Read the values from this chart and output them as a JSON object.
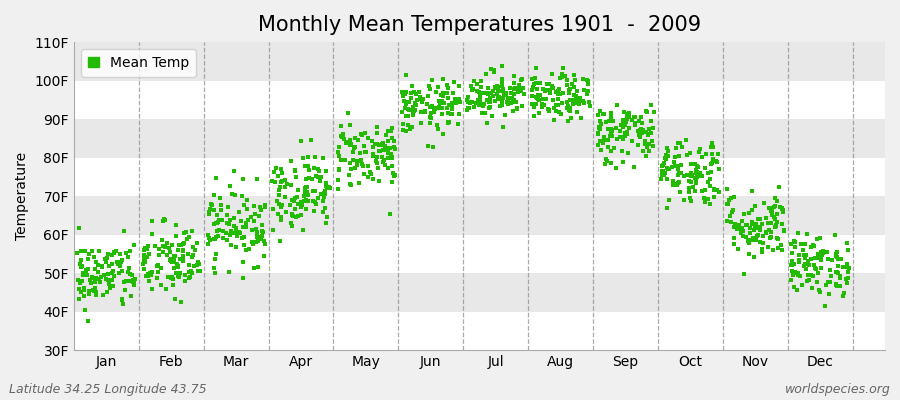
{
  "title": "Monthly Mean Temperatures 1901  -  2009",
  "ylabel": "Temperature",
  "ylim": [
    30,
    110
  ],
  "yticks": [
    30,
    40,
    50,
    60,
    70,
    80,
    90,
    100,
    110
  ],
  "ytick_labels": [
    "30F",
    "40F",
    "50F",
    "60F",
    "70F",
    "80F",
    "90F",
    "100F",
    "110F"
  ],
  "months": [
    "Jan",
    "Feb",
    "Mar",
    "Apr",
    "May",
    "Jun",
    "Jul",
    "Aug",
    "Sep",
    "Oct",
    "Nov",
    "Dec"
  ],
  "mean_temps_F": [
    49.5,
    53.0,
    62.5,
    71.5,
    81.0,
    93.0,
    96.5,
    95.5,
    86.5,
    76.5,
    62.5,
    52.0
  ],
  "temp_spread": [
    4.5,
    5.0,
    5.0,
    5.0,
    4.5,
    3.5,
    3.0,
    3.0,
    4.0,
    4.5,
    4.5,
    4.0
  ],
  "n_years": 109,
  "dot_color": "#22bb00",
  "dot_size": 7,
  "bg_color": "#f0f0f0",
  "band_colors": [
    "#ffffff",
    "#e8e8e8"
  ],
  "dashed_line_color": "#888888",
  "legend_label": "Mean Temp",
  "footer_left": "Latitude 34.25 Longitude 43.75",
  "footer_right": "worldspecies.org",
  "title_fontsize": 15,
  "axis_label_fontsize": 10,
  "tick_fontsize": 10,
  "footer_fontsize": 9,
  "legend_fontsize": 10
}
